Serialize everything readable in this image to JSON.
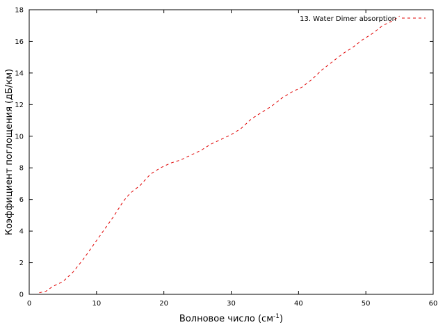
{
  "chart_data": {
    "type": "line",
    "xlabel": "Волновое число (см",
    "xlabel_sup": "-1",
    "xlabel_close": ")",
    "ylabel": "Коэффициент поглощения (дБ/км)",
    "xlim": [
      0,
      60
    ],
    "ylim": [
      0,
      18
    ],
    "x_ticks": [
      0,
      10,
      20,
      30,
      40,
      50,
      60
    ],
    "y_ticks": [
      0,
      2,
      4,
      6,
      8,
      10,
      12,
      14,
      16,
      18
    ],
    "grid": false,
    "legend_position": "top-right",
    "series": [
      {
        "name": "13. Water Dimer absorption",
        "color": "#e00000",
        "dash": "dashed",
        "x": [
          1.5,
          2.5,
          3.5,
          5,
          6.5,
          8,
          9.5,
          11,
          12.5,
          14,
          15,
          16.5,
          18,
          19.5,
          21,
          22.5,
          24,
          25.5,
          27,
          28.5,
          30,
          31.5,
          33,
          34.5,
          36,
          37.5,
          39,
          40.5,
          42,
          43.5,
          45,
          46.5,
          48,
          49.5,
          51,
          52.5,
          54,
          55
        ],
        "y": [
          0.1,
          0.2,
          0.5,
          0.8,
          1.4,
          2.2,
          3.1,
          4.0,
          4.9,
          5.9,
          6.4,
          6.9,
          7.6,
          8.0,
          8.3,
          8.5,
          8.8,
          9.1,
          9.5,
          9.8,
          10.1,
          10.5,
          11.1,
          11.5,
          11.9,
          12.4,
          12.8,
          13.1,
          13.6,
          14.2,
          14.7,
          15.2,
          15.6,
          16.1,
          16.5,
          17.0,
          17.3,
          17.6
        ]
      }
    ]
  }
}
